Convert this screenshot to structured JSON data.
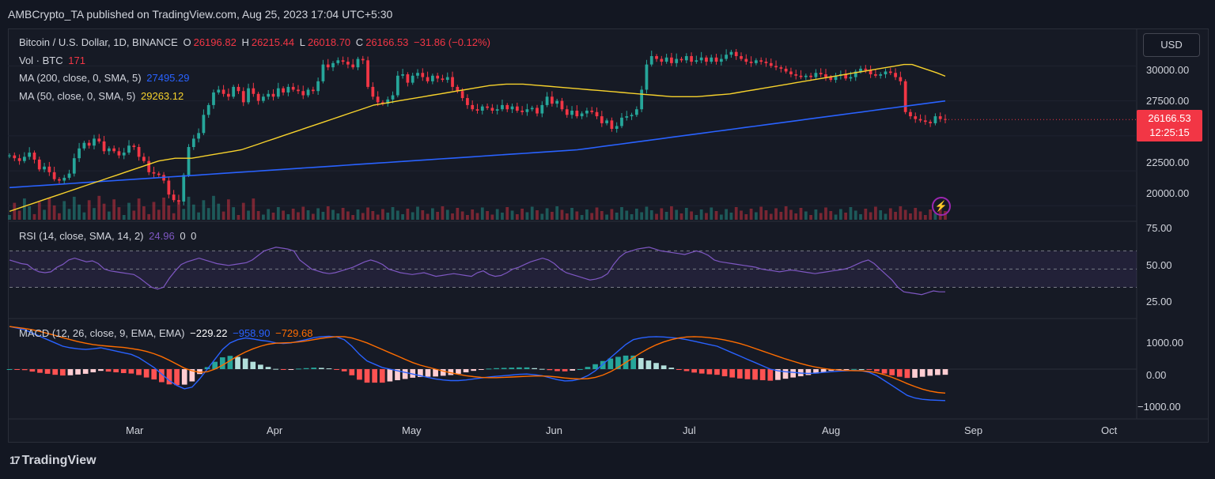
{
  "header": {
    "publisher_line": "AMBCrypto_TA published on TradingView.com, Aug 25, 2023 17:04 UTC+5:30"
  },
  "legend": {
    "symbol": "Bitcoin / U.S. Dollar, 1D, BINANCE",
    "o_label": "O",
    "o_value": "26196.82",
    "h_label": "H",
    "h_value": "26215.44",
    "l_label": "L",
    "l_value": "26018.70",
    "c_label": "C",
    "c_value": "26166.53",
    "change": "−31.86 (−0.12%)",
    "vol_label": "Vol · BTC",
    "vol_value": "171",
    "ma200_label": "MA (200, close, 0, SMA, 5)",
    "ma200_value": "27495.29",
    "ma50_label": "MA (50, close, 0, SMA, 5)",
    "ma50_value": "29263.12",
    "rsi_label": "RSI (14, close, SMA, 14, 2)",
    "rsi_value": "24.96",
    "rsi_extra1": "0",
    "rsi_extra2": "0",
    "macd_label": "MACD (12, 26, close, 9, EMA, EMA)",
    "macd_hist": "−229.22",
    "macd_line": "−958.90",
    "macd_signal": "−729.68"
  },
  "currency_button": "USD",
  "price_tag": {
    "price": "26166.53",
    "countdown": "12:25:15"
  },
  "axes": {
    "price_ticks": [
      "30000.00",
      "27500.00",
      "22500.00",
      "20000.00"
    ],
    "rsi_ticks": [
      "75.00",
      "50.00",
      "25.00"
    ],
    "macd_ticks": [
      "1000.00",
      "0.00",
      "−1000.00"
    ],
    "time_ticks": [
      "Mar",
      "Apr",
      "May",
      "Jun",
      "Jul",
      "Aug",
      "Sep",
      "Oct"
    ]
  },
  "brand": {
    "name": "TradingView",
    "mark": "17"
  },
  "colors": {
    "up": "#26a69a",
    "down": "#f23645",
    "ma50": "#f7d22c",
    "ma200": "#2962ff",
    "rsi": "#7e57c2",
    "macd": "#2962ff",
    "signal": "#ff6d00"
  },
  "chart_data": {
    "type": "candlestick",
    "price_range": [
      19000,
      32000
    ],
    "rsi_range": [
      0,
      100
    ],
    "macd_range": [
      -1000,
      1000
    ],
    "close": [
      23600,
      23400,
      23200,
      23500,
      23800,
      23300,
      22600,
      22800,
      22400,
      21900,
      21800,
      22000,
      22300,
      23400,
      24100,
      24500,
      24300,
      24800,
      24600,
      23900,
      24100,
      23900,
      23600,
      23800,
      24300,
      24200,
      23500,
      23200,
      22400,
      22300,
      22200,
      21800,
      20800,
      20400,
      20300,
      22200,
      24200,
      24800,
      25200,
      26500,
      27200,
      28100,
      28300,
      28000,
      27800,
      28500,
      28200,
      27400,
      28400,
      28000,
      27500,
      27800,
      28000,
      27800,
      28400,
      28100,
      28500,
      28300,
      28200,
      27900,
      28300,
      28200,
      28900,
      30100,
      29900,
      30200,
      30400,
      30300,
      30100,
      29900,
      30500,
      30400,
      28500,
      27800,
      27400,
      27300,
      27600,
      27900,
      29300,
      29400,
      28800,
      29300,
      29500,
      29200,
      28900,
      29300,
      29100,
      29000,
      29200,
      28500,
      28200,
      27700,
      27200,
      26900,
      26800,
      27100,
      27000,
      26800,
      26900,
      27200,
      26900,
      27100,
      26800,
      26700,
      26900,
      27000,
      26600,
      27200,
      27800,
      27300,
      27500,
      26900,
      26500,
      26800,
      26400,
      26600,
      26800,
      26700,
      26400,
      25900,
      26100,
      25500,
      25700,
      26300,
      26400,
      26500,
      26900,
      28300,
      30100,
      30700,
      30500,
      30300,
      30600,
      30200,
      30500,
      30400,
      30700,
      30300,
      30400,
      30600,
      30300,
      30600,
      30300,
      30500,
      30800,
      31000,
      30700,
      30500,
      30300,
      30200,
      30400,
      30300,
      30200,
      30000,
      29900,
      29800,
      29600,
      29400,
      29300,
      29200,
      29300,
      29200,
      29500,
      29400,
      29200,
      29000,
      29300,
      29400,
      29100,
      29200,
      29600,
      29800,
      29700,
      29400,
      29300,
      29400,
      29600,
      29500,
      29200,
      28900,
      26700,
      26400,
      26200,
      26100,
      26000,
      25900,
      26400,
      26200,
      26166
    ],
    "ma50": [
      19600,
      19800,
      20000,
      20200,
      20400,
      20600,
      20800,
      21000,
      21200,
      21400,
      21600,
      21800,
      22000,
      22200,
      22400,
      22600,
      22800,
      23000,
      23200,
      23300,
      23400,
      23400,
      23400,
      23500,
      23600,
      23700,
      23800,
      23900,
      24000,
      24200,
      24400,
      24600,
      24800,
      25000,
      25200,
      25400,
      25600,
      25800,
      26000,
      26200,
      26400,
      26600,
      26800,
      27000,
      27200,
      27300,
      27400,
      27500,
      27600,
      27700,
      27800,
      27900,
      28000,
      28100,
      28200,
      28300,
      28400,
      28500,
      28600,
      28650,
      28700,
      28700,
      28700,
      28650,
      28600,
      28550,
      28500,
      28450,
      28400,
      28350,
      28300,
      28250,
      28200,
      28150,
      28100,
      28050,
      28000,
      27950,
      27900,
      27850,
      27800,
      27800,
      27800,
      27800,
      27850,
      27900,
      27950,
      28000,
      28100,
      28200,
      28300,
      28400,
      28500,
      28600,
      28700,
      28800,
      28900,
      29000,
      29100,
      29200,
      29300,
      29400,
      29500,
      29600,
      29700,
      29800,
      29900,
      30000,
      30100,
      30100,
      29900,
      29700,
      29500,
      29263
    ],
    "ma200": [
      21300,
      21350,
      21400,
      21450,
      21500,
      21550,
      21600,
      21650,
      21700,
      21750,
      21800,
      21850,
      21900,
      21950,
      22000,
      22050,
      22100,
      22150,
      22200,
      22250,
      22300,
      22350,
      22400,
      22450,
      22500,
      22550,
      22600,
      22650,
      22700,
      22750,
      22800,
      22850,
      22900,
      22950,
      23000,
      23050,
      23100,
      23150,
      23200,
      23250,
      23300,
      23350,
      23400,
      23450,
      23500,
      23550,
      23600,
      23650,
      23700,
      23750,
      23800,
      23850,
      23900,
      23950,
      24000,
      24100,
      24200,
      24300,
      24400,
      24500,
      24600,
      24700,
      24800,
      24900,
      25000,
      25100,
      25200,
      25300,
      25400,
      25500,
      25600,
      25700,
      25800,
      25900,
      26000,
      26100,
      26200,
      26300,
      26400,
      26500,
      26600,
      26700,
      26800,
      26900,
      27000,
      27100,
      27200,
      27300,
      27400,
      27495
    ],
    "rsi": [
      60,
      58,
      56,
      55,
      50,
      47,
      46,
      47,
      52,
      55,
      60,
      62,
      60,
      58,
      59,
      56,
      50,
      48,
      47,
      46,
      45,
      44,
      40,
      35,
      30,
      28,
      30,
      40,
      48,
      55,
      58,
      60,
      62,
      60,
      58,
      56,
      55,
      54,
      55,
      56,
      57,
      60,
      65,
      70,
      72,
      74,
      73,
      72,
      70,
      60,
      55,
      50,
      48,
      46,
      45,
      46,
      48,
      50,
      52,
      55,
      58,
      60,
      58,
      55,
      50,
      48,
      46,
      45,
      44,
      45,
      46,
      44,
      42,
      43,
      44,
      45,
      44,
      43,
      42,
      46,
      48,
      44,
      42,
      43,
      46,
      50,
      52,
      55,
      58,
      60,
      62,
      60,
      56,
      50,
      46,
      44,
      42,
      40,
      38,
      39,
      41,
      45,
      55,
      63,
      68,
      70,
      72,
      73,
      74,
      72,
      70,
      69,
      68,
      67,
      66,
      68,
      70,
      68,
      65,
      60,
      58,
      57,
      56,
      55,
      54,
      53,
      52,
      50,
      49,
      48,
      47,
      48,
      49,
      48,
      47,
      46,
      45,
      46,
      47,
      48,
      49,
      50,
      52,
      55,
      58,
      60,
      56,
      50,
      44,
      38,
      30,
      25,
      24,
      23,
      22,
      24,
      26,
      25,
      24.96
    ],
    "macd_line": [
      1300,
      1250,
      1200,
      1100,
      1000,
      900,
      800,
      700,
      650,
      620,
      600,
      620,
      650,
      600,
      550,
      500,
      450,
      350,
      200,
      50,
      -150,
      -350,
      -500,
      -600,
      -550,
      -300,
      0,
      300,
      600,
      800,
      900,
      950,
      920,
      880,
      850,
      800,
      780,
      800,
      850,
      900,
      960,
      990,
      1000,
      980,
      900,
      700,
      450,
      250,
      150,
      50,
      0,
      -50,
      -100,
      -150,
      -200,
      -250,
      -300,
      -330,
      -350,
      -350,
      -330,
      -300,
      -270,
      -240,
      -220,
      -200,
      -180,
      -160,
      -150,
      -170,
      -200,
      -260,
      -320,
      -360,
      -350,
      -300,
      -200,
      -50,
      150,
      350,
      550,
      750,
      900,
      950,
      980,
      990,
      980,
      960,
      940,
      900,
      850,
      800,
      750,
      700,
      600,
      500,
      400,
      300,
      200,
      100,
      0,
      -50,
      -80,
      -100,
      -120,
      -130,
      -120,
      -100,
      -80,
      -60,
      -50,
      -40,
      -50,
      -100,
      -200,
      -350,
      -500,
      -650,
      -800,
      -880,
      -920,
      -940,
      -950,
      -958.9
    ],
    "macd_signal": [
      1300,
      1270,
      1240,
      1200,
      1150,
      1090,
      1030,
      960,
      900,
      840,
      790,
      750,
      720,
      700,
      680,
      660,
      630,
      590,
      540,
      470,
      380,
      270,
      150,
      30,
      -50,
      -100,
      -80,
      0,
      120,
      260,
      400,
      520,
      620,
      700,
      760,
      790,
      800,
      810,
      830,
      860,
      900,
      940,
      970,
      990,
      990,
      950,
      880,
      800,
      700,
      600,
      500,
      400,
      300,
      200,
      120,
      60,
      0,
      -60,
      -110,
      -160,
      -200,
      -230,
      -250,
      -260,
      -260,
      -250,
      -240,
      -230,
      -220,
      -210,
      -210,
      -220,
      -240,
      -270,
      -290,
      -300,
      -290,
      -250,
      -180,
      -80,
      50,
      200,
      350,
      500,
      630,
      740,
      830,
      900,
      950,
      980,
      990,
      980,
      960,
      930,
      890,
      840,
      780,
      710,
      630,
      550,
      470,
      390,
      310,
      240,
      170,
      110,
      60,
      20,
      -10,
      -30,
      -40,
      -45,
      -50,
      -70,
      -110,
      -170,
      -250,
      -340,
      -440,
      -530,
      -610,
      -670,
      -710,
      -729.68
    ]
  }
}
